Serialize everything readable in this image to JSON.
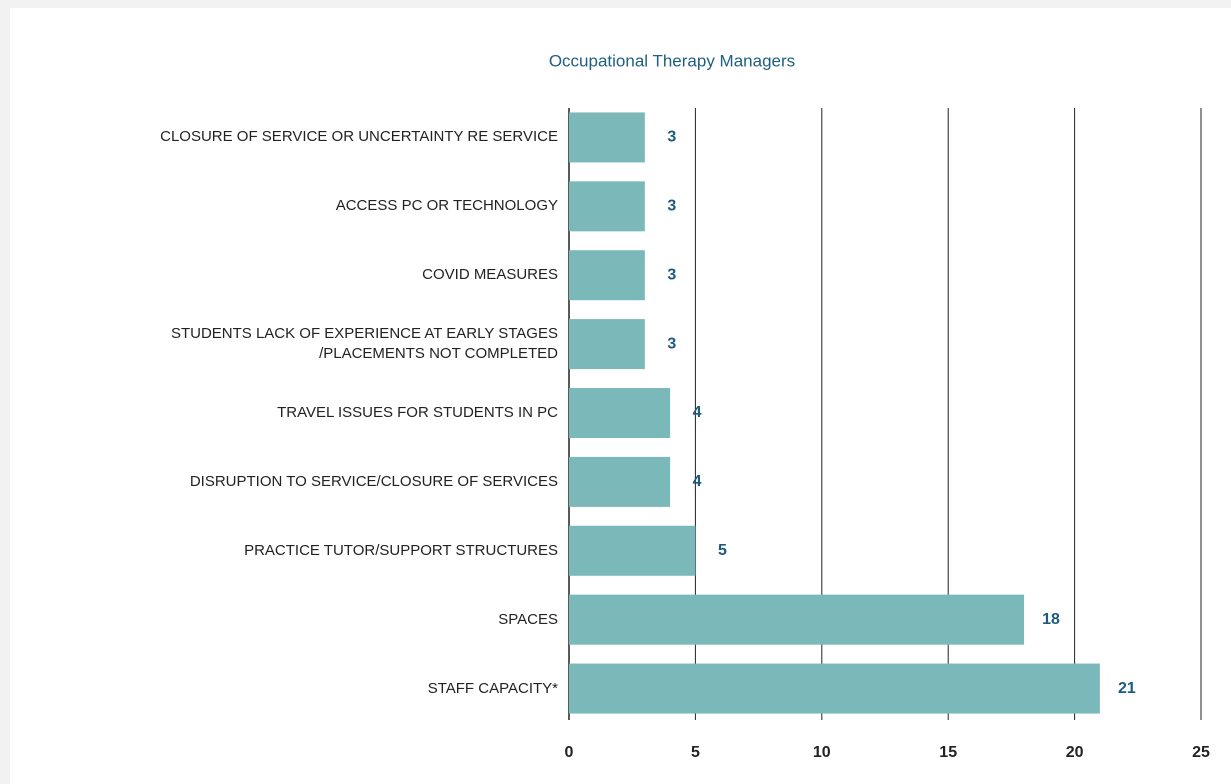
{
  "chart_data": {
    "type": "barh",
    "title": "Occupational Therapy Managers",
    "categories": [
      "CLOSURE OF SERVICE OR UNCERTAINTY RE SERVICE",
      "ACCESS PC OR TECHNOLOGY",
      "COVID MEASURES",
      "STUDENTS LACK OF EXPERIENCE AT EARLY STAGES\n/PLACEMENTS NOT COMPLETED",
      "TRAVEL ISSUES FOR STUDENTS IN PC",
      "DISRUPTION TO SERVICE/CLOSURE OF SERVICES",
      "PRACTICE TUTOR/SUPPORT STRUCTURES",
      "SPACES",
      "STAFF CAPACITY*"
    ],
    "values": [
      3,
      3,
      3,
      3,
      4,
      4,
      5,
      18,
      21
    ],
    "color": "#7ab8b9",
    "label_color": "#1d5a7c",
    "xlim": [
      0,
      25
    ],
    "xticks": [
      0,
      5,
      10,
      15,
      20,
      25
    ],
    "grid": true
  }
}
